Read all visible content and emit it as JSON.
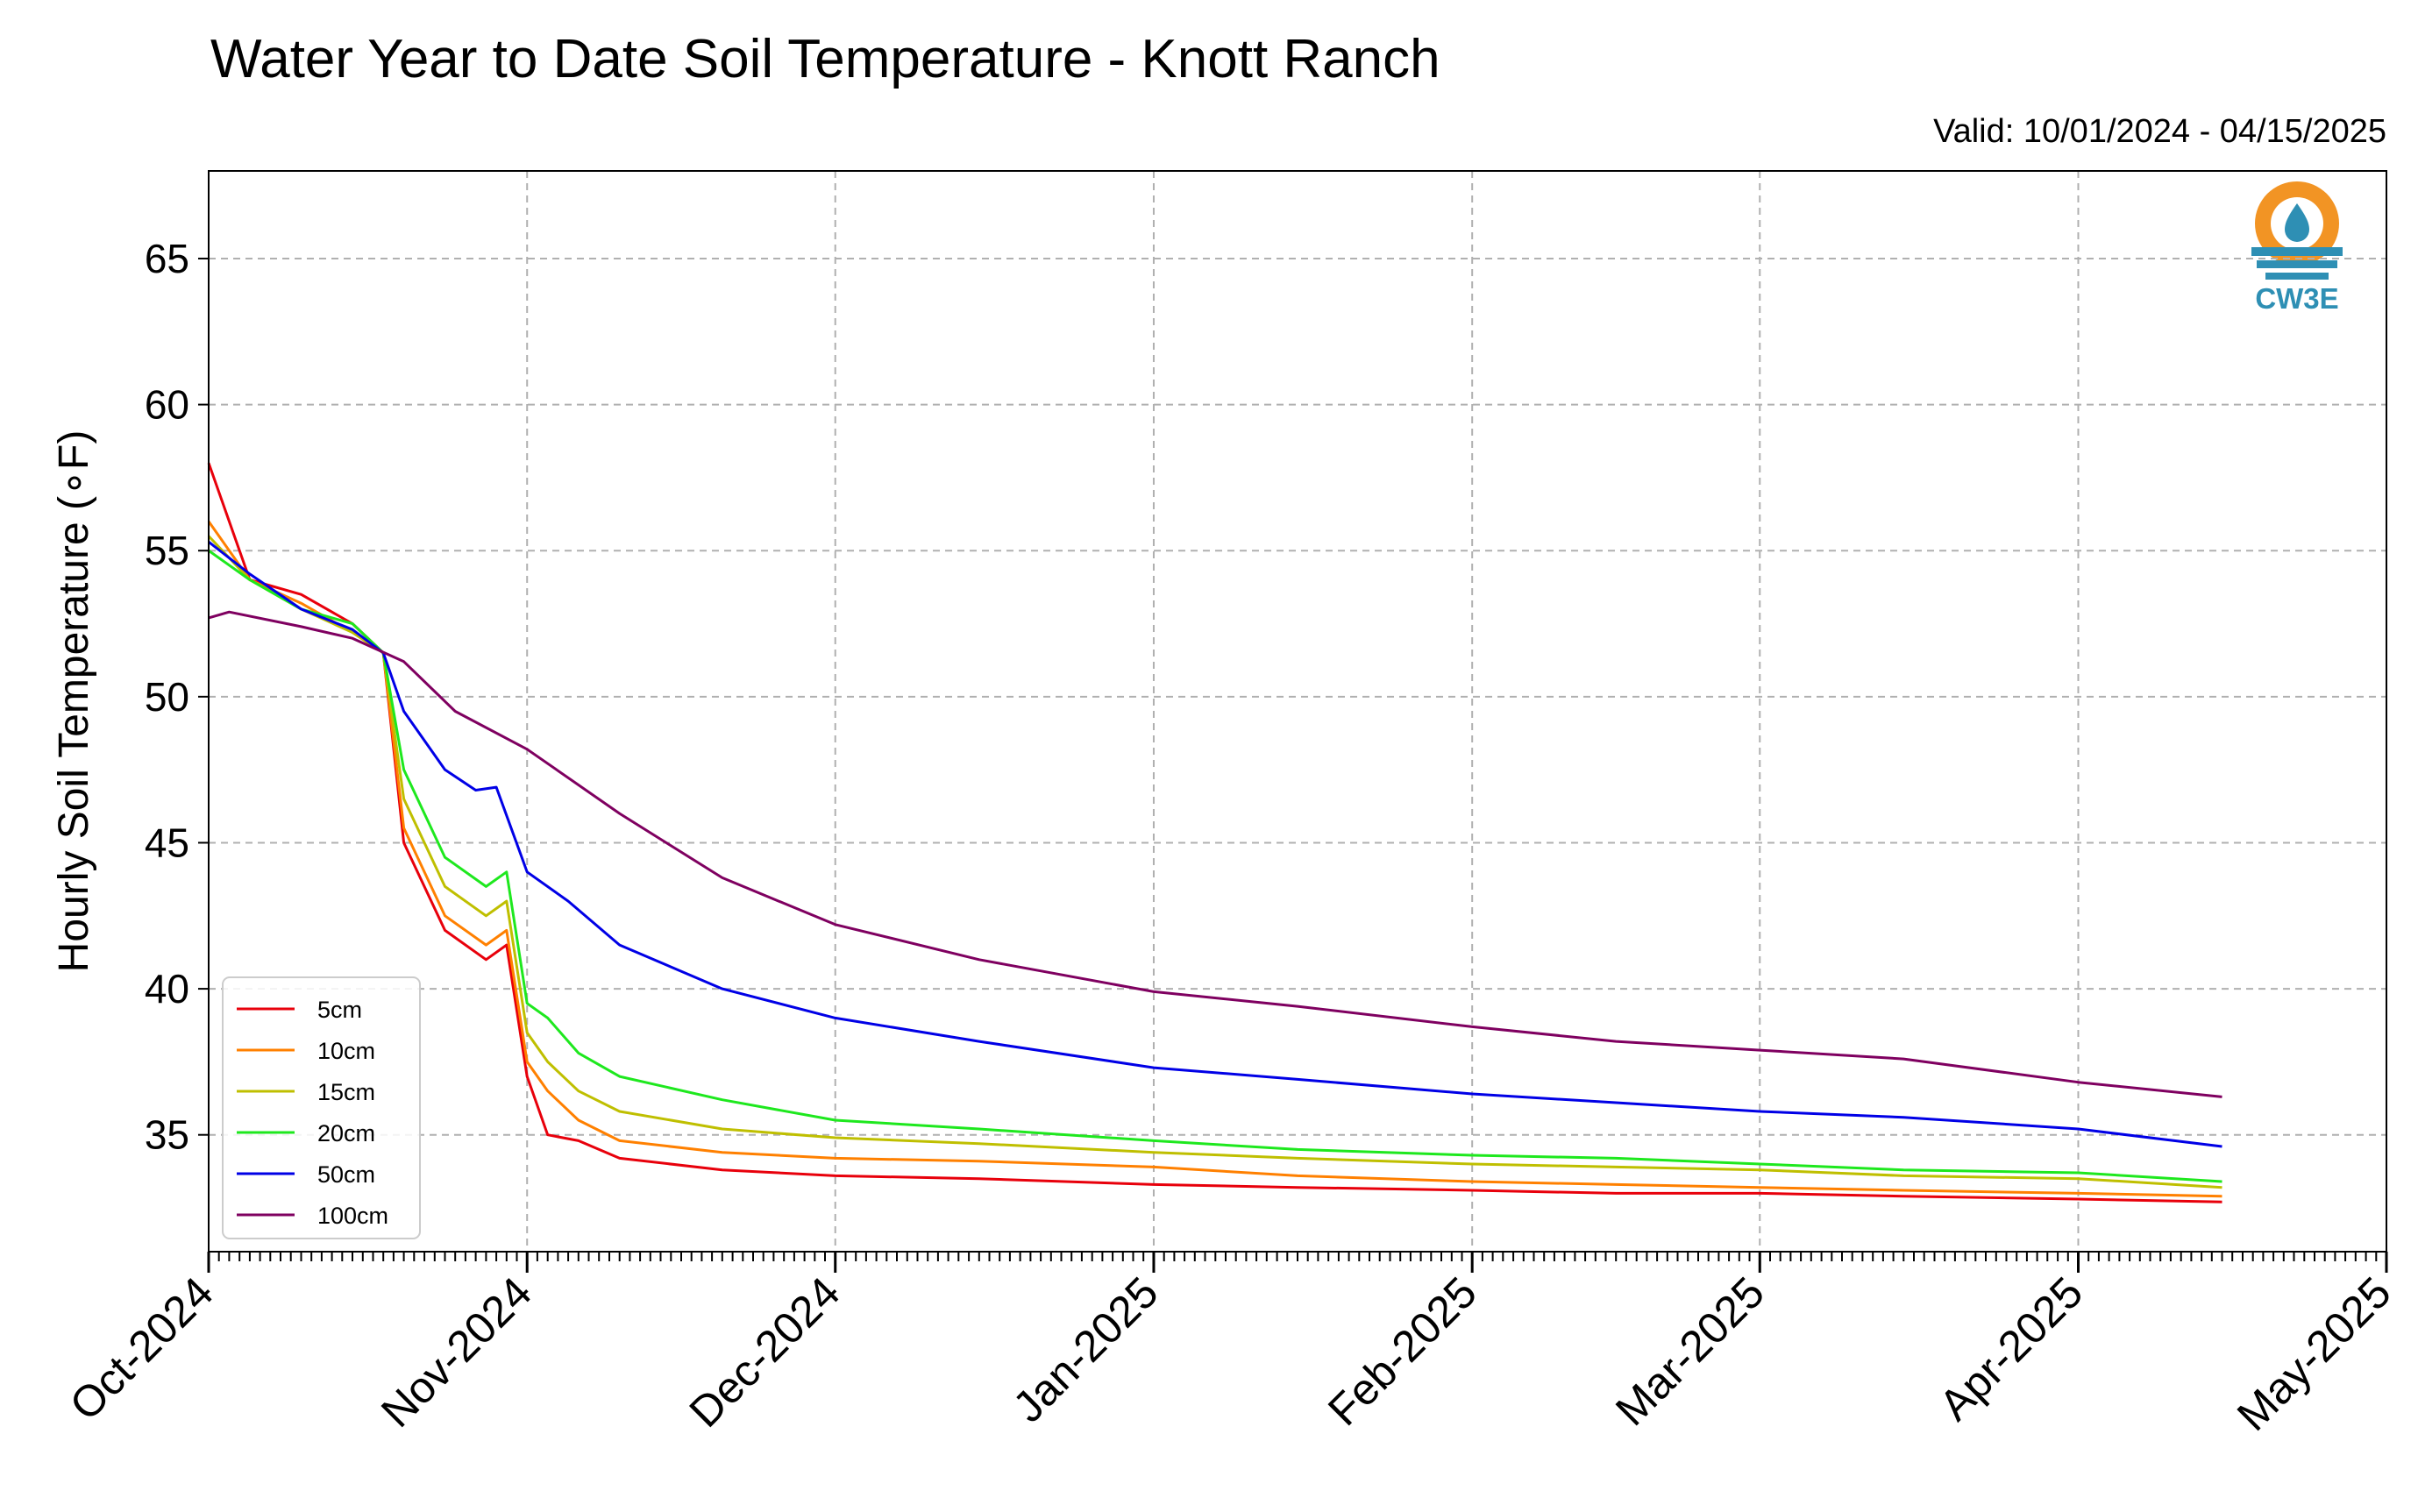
{
  "chart_data": {
    "type": "line",
    "title": "Water Year to Date Soil Temperature - Knott Ranch",
    "subtitle": "Valid: 10/01/2024 - 04/15/2025",
    "xlabel": "",
    "ylabel": "Hourly Soil Temperature (∘F)",
    "xlim": [
      "2024-10-01",
      "2025-05-01"
    ],
    "ylim": [
      31,
      68
    ],
    "xticks": [
      "Oct-2024",
      "Nov-2024",
      "Dec-2024",
      "Jan-2025",
      "Feb-2025",
      "Mar-2025",
      "Apr-2025",
      "May-2025"
    ],
    "yticks": [
      35,
      40,
      45,
      50,
      55,
      60,
      65
    ],
    "grid": true,
    "legend_position": "lower-left",
    "logo": "CW3E",
    "series": [
      {
        "name": "5cm",
        "color": "#e8000b",
        "points": [
          [
            "2024-10-01",
            58.0
          ],
          [
            "2024-10-05",
            54.0
          ],
          [
            "2024-10-10",
            53.5
          ],
          [
            "2024-10-15",
            52.5
          ],
          [
            "2024-10-18",
            51.5
          ],
          [
            "2024-10-20",
            45.0
          ],
          [
            "2024-10-24",
            42.0
          ],
          [
            "2024-10-28",
            41.0
          ],
          [
            "2024-10-30",
            41.5
          ],
          [
            "2024-11-01",
            37.0
          ],
          [
            "2024-11-03",
            35.0
          ],
          [
            "2024-11-06",
            34.8
          ],
          [
            "2024-11-10",
            34.2
          ],
          [
            "2024-11-20",
            33.8
          ],
          [
            "2024-12-01",
            33.6
          ],
          [
            "2024-12-15",
            33.5
          ],
          [
            "2025-01-01",
            33.3
          ],
          [
            "2025-01-15",
            33.2
          ],
          [
            "2025-02-01",
            33.1
          ],
          [
            "2025-02-15",
            33.0
          ],
          [
            "2025-03-01",
            33.0
          ],
          [
            "2025-03-15",
            32.9
          ],
          [
            "2025-04-01",
            32.8
          ],
          [
            "2025-04-15",
            32.7
          ]
        ]
      },
      {
        "name": "10cm",
        "color": "#ff8000",
        "points": [
          [
            "2024-10-01",
            56.0
          ],
          [
            "2024-10-05",
            54.0
          ],
          [
            "2024-10-10",
            53.2
          ],
          [
            "2024-10-15",
            52.2
          ],
          [
            "2024-10-18",
            51.5
          ],
          [
            "2024-10-20",
            45.5
          ],
          [
            "2024-10-24",
            42.5
          ],
          [
            "2024-10-28",
            41.5
          ],
          [
            "2024-10-30",
            42.0
          ],
          [
            "2024-11-01",
            37.5
          ],
          [
            "2024-11-03",
            36.5
          ],
          [
            "2024-11-06",
            35.5
          ],
          [
            "2024-11-10",
            34.8
          ],
          [
            "2024-11-20",
            34.4
          ],
          [
            "2024-12-01",
            34.2
          ],
          [
            "2024-12-15",
            34.1
          ],
          [
            "2025-01-01",
            33.9
          ],
          [
            "2025-01-15",
            33.6
          ],
          [
            "2025-02-01",
            33.4
          ],
          [
            "2025-02-15",
            33.3
          ],
          [
            "2025-03-01",
            33.2
          ],
          [
            "2025-03-15",
            33.1
          ],
          [
            "2025-04-01",
            33.0
          ],
          [
            "2025-04-15",
            32.9
          ]
        ]
      },
      {
        "name": "15cm",
        "color": "#bfbf00",
        "points": [
          [
            "2024-10-01",
            55.5
          ],
          [
            "2024-10-05",
            54.0
          ],
          [
            "2024-10-10",
            53.0
          ],
          [
            "2024-10-15",
            52.2
          ],
          [
            "2024-10-18",
            51.5
          ],
          [
            "2024-10-20",
            46.5
          ],
          [
            "2024-10-24",
            43.5
          ],
          [
            "2024-10-28",
            42.5
          ],
          [
            "2024-10-30",
            43.0
          ],
          [
            "2024-11-01",
            38.5
          ],
          [
            "2024-11-03",
            37.5
          ],
          [
            "2024-11-06",
            36.5
          ],
          [
            "2024-11-10",
            35.8
          ],
          [
            "2024-11-20",
            35.2
          ],
          [
            "2024-12-01",
            34.9
          ],
          [
            "2024-12-15",
            34.7
          ],
          [
            "2025-01-01",
            34.4
          ],
          [
            "2025-01-15",
            34.2
          ],
          [
            "2025-02-01",
            34.0
          ],
          [
            "2025-02-15",
            33.9
          ],
          [
            "2025-03-01",
            33.8
          ],
          [
            "2025-03-15",
            33.6
          ],
          [
            "2025-04-01",
            33.5
          ],
          [
            "2025-04-15",
            33.2
          ]
        ]
      },
      {
        "name": "20cm",
        "color": "#1ee81e",
        "points": [
          [
            "2024-10-01",
            55.0
          ],
          [
            "2024-10-05",
            54.0
          ],
          [
            "2024-10-10",
            53.0
          ],
          [
            "2024-10-15",
            52.5
          ],
          [
            "2024-10-18",
            51.5
          ],
          [
            "2024-10-20",
            47.5
          ],
          [
            "2024-10-24",
            44.5
          ],
          [
            "2024-10-28",
            43.5
          ],
          [
            "2024-10-30",
            44.0
          ],
          [
            "2024-11-01",
            39.5
          ],
          [
            "2024-11-03",
            39.0
          ],
          [
            "2024-11-06",
            37.8
          ],
          [
            "2024-11-10",
            37.0
          ],
          [
            "2024-11-20",
            36.2
          ],
          [
            "2024-12-01",
            35.5
          ],
          [
            "2024-12-15",
            35.2
          ],
          [
            "2025-01-01",
            34.8
          ],
          [
            "2025-01-15",
            34.5
          ],
          [
            "2025-02-01",
            34.3
          ],
          [
            "2025-02-15",
            34.2
          ],
          [
            "2025-03-01",
            34.0
          ],
          [
            "2025-03-15",
            33.8
          ],
          [
            "2025-04-01",
            33.7
          ],
          [
            "2025-04-15",
            33.4
          ]
        ]
      },
      {
        "name": "50cm",
        "color": "#0000e6",
        "points": [
          [
            "2024-10-01",
            55.3
          ],
          [
            "2024-10-05",
            54.2
          ],
          [
            "2024-10-10",
            53.0
          ],
          [
            "2024-10-15",
            52.3
          ],
          [
            "2024-10-18",
            51.5
          ],
          [
            "2024-10-20",
            49.5
          ],
          [
            "2024-10-24",
            47.5
          ],
          [
            "2024-10-27",
            46.8
          ],
          [
            "2024-10-29",
            46.9
          ],
          [
            "2024-11-01",
            44.0
          ],
          [
            "2024-11-05",
            43.0
          ],
          [
            "2024-11-10",
            41.5
          ],
          [
            "2024-11-20",
            40.0
          ],
          [
            "2024-12-01",
            39.0
          ],
          [
            "2024-12-15",
            38.2
          ],
          [
            "2025-01-01",
            37.3
          ],
          [
            "2025-01-15",
            36.9
          ],
          [
            "2025-02-01",
            36.4
          ],
          [
            "2025-02-15",
            36.1
          ],
          [
            "2025-03-01",
            35.8
          ],
          [
            "2025-03-15",
            35.6
          ],
          [
            "2025-04-01",
            35.2
          ],
          [
            "2025-04-15",
            34.6
          ]
        ]
      },
      {
        "name": "100cm",
        "color": "#7f0060",
        "points": [
          [
            "2024-10-01",
            52.7
          ],
          [
            "2024-10-03",
            52.9
          ],
          [
            "2024-10-10",
            52.4
          ],
          [
            "2024-10-15",
            52.0
          ],
          [
            "2024-10-20",
            51.2
          ],
          [
            "2024-10-25",
            49.5
          ],
          [
            "2024-11-01",
            48.2
          ],
          [
            "2024-11-10",
            46.0
          ],
          [
            "2024-11-20",
            43.8
          ],
          [
            "2024-12-01",
            42.2
          ],
          [
            "2024-12-15",
            41.0
          ],
          [
            "2025-01-01",
            39.9
          ],
          [
            "2025-01-15",
            39.4
          ],
          [
            "2025-02-01",
            38.7
          ],
          [
            "2025-02-15",
            38.2
          ],
          [
            "2025-03-01",
            37.9
          ],
          [
            "2025-03-15",
            37.6
          ],
          [
            "2025-04-01",
            36.8
          ],
          [
            "2025-04-15",
            36.3
          ]
        ]
      }
    ]
  }
}
